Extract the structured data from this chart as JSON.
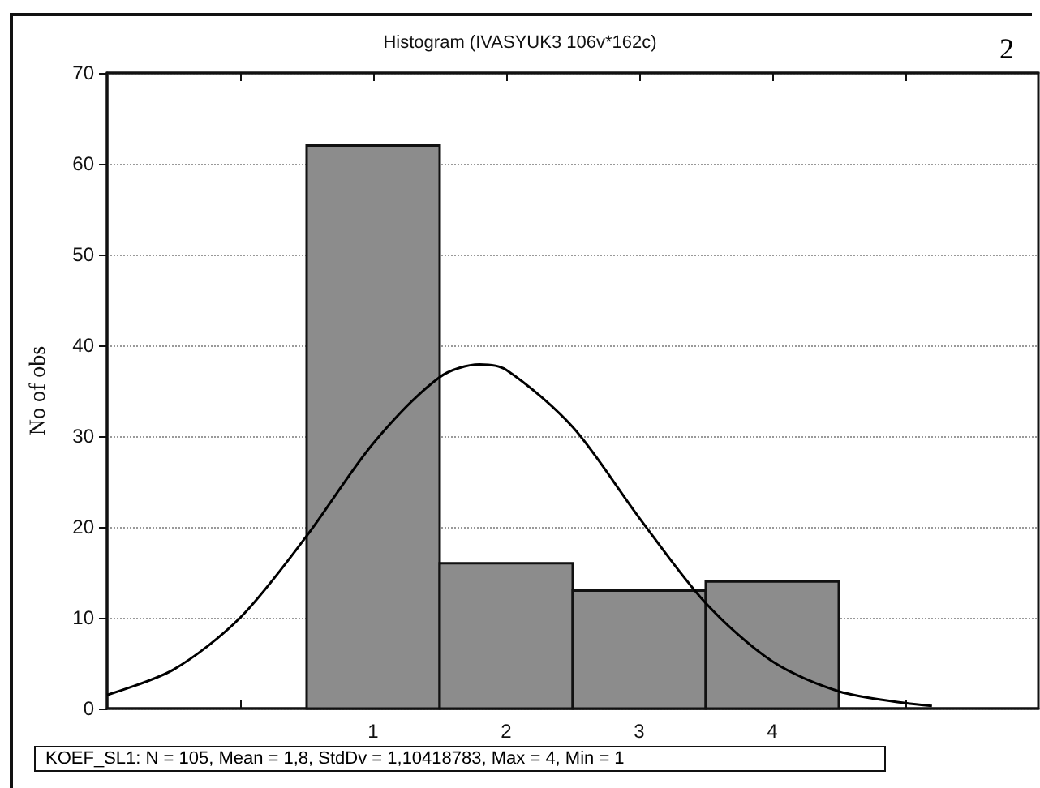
{
  "chart_data": {
    "type": "histogram",
    "title": "Histogram (IVASYUK3 106v*162c)",
    "ylabel": "No of obs",
    "annotations": [
      "2",
      "KOEF_SL1:  N = 105, Mean = 1,8, StdDv = 1,10418783, Max = 4, Min = 1"
    ],
    "bins": [
      0.5,
      1.5,
      2.5,
      3.5,
      4.5
    ],
    "values": [
      62,
      16,
      13,
      14
    ],
    "color": "#8c8c8c",
    "series": [
      {
        "type": "line",
        "color": "#000000",
        "x": [
          -1,
          -0.5,
          0,
          0.5,
          1,
          1.5,
          1.8,
          2,
          2.5,
          3,
          3.5,
          4,
          4.5,
          5,
          5.2
        ],
        "values": [
          1.5,
          4.3,
          10,
          19,
          29.2,
          36.5,
          37.9,
          37.3,
          31,
          21,
          11.6,
          5.2,
          1.9,
          0.6,
          0.3
        ]
      }
    ],
    "xlim": [
      -1,
      6
    ],
    "xticks": [
      {
        "value": 0,
        "label": null
      },
      1,
      2,
      3,
      4,
      {
        "value": 5,
        "label": null
      }
    ],
    "ylim": [
      0,
      70
    ],
    "yticks": [
      0,
      10,
      20,
      30,
      40,
      50,
      60,
      70
    ],
    "grid": "y",
    "marker": "none",
    "line_style": "solid",
    "legend": false
  }
}
